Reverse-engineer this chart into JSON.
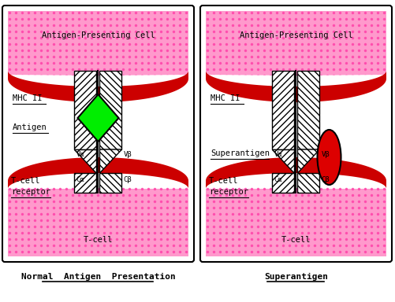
{
  "bg_color": "#ffffff",
  "pink_color": "#ff99cc",
  "dot_color": "#ff44aa",
  "red_color": "#cc0000",
  "antigen_color": "#00ee00",
  "superantigen_color": "#dd0000",
  "panel_border": "#000000",
  "left_caption": "Normal  Antigen  Presentation",
  "right_caption": "Superantigen",
  "left_top_label": "Antigen-Presenting Cell",
  "right_top_label": "Antigen-Presenting Cell",
  "left_bottom_label": "T-cell",
  "right_bottom_label": "T-cell",
  "figsize": [
    5.02,
    3.84
  ],
  "dpi": 100
}
